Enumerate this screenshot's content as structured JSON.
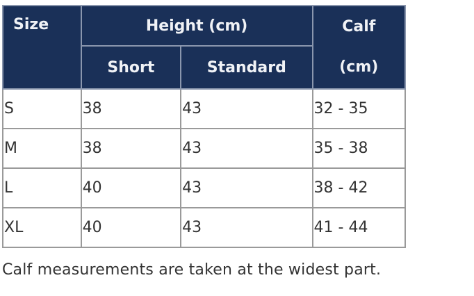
{
  "table": {
    "headers": {
      "size": "Size",
      "height": "Height (cm)",
      "short": "Short",
      "standard": "Standard",
      "calf_top": "Calf",
      "calf_bottom": "(cm)"
    },
    "rows": [
      {
        "size": "S",
        "short": "38",
        "standard": "43",
        "calf": "32 - 35"
      },
      {
        "size": "M",
        "short": "38",
        "standard": "43",
        "calf": "35 - 38"
      },
      {
        "size": "L",
        "short": "40",
        "standard": "43",
        "calf": "38 - 42"
      },
      {
        "size": "XL",
        "short": "40",
        "standard": "43",
        "calf": "41 - 44"
      }
    ],
    "header_color": "#1a3058"
  },
  "caption": "Calf measurements are taken at the widest part."
}
